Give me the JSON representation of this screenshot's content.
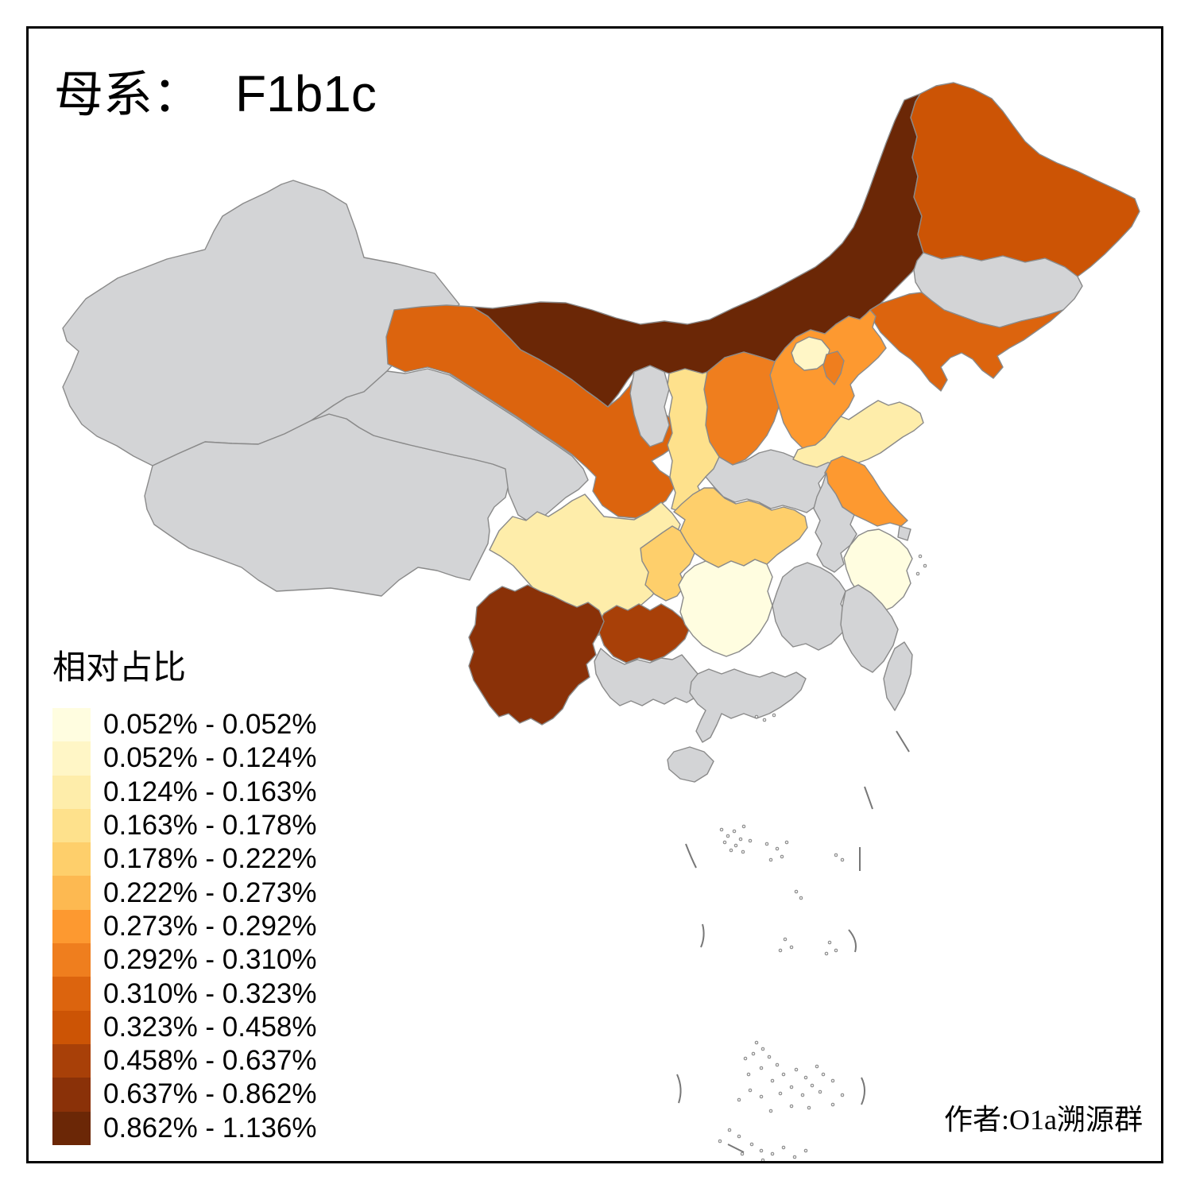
{
  "title": {
    "prefix": "母系：",
    "haplogroup": "F1b1c"
  },
  "legend": {
    "title": "相对占比",
    "bands": [
      {
        "label": "0.052% - 0.052%",
        "color": "#FFFDE0"
      },
      {
        "label": "0.052% - 0.124%",
        "color": "#FFF6C6"
      },
      {
        "label": "0.124% - 0.163%",
        "color": "#FEEDAA"
      },
      {
        "label": "0.163% - 0.178%",
        "color": "#FEE18C"
      },
      {
        "label": "0.178% - 0.222%",
        "color": "#FECF6B"
      },
      {
        "label": "0.222% - 0.273%",
        "color": "#FDB951"
      },
      {
        "label": "0.273% - 0.292%",
        "color": "#FD9930"
      },
      {
        "label": "0.292% - 0.310%",
        "color": "#EF7E1E"
      },
      {
        "label": "0.310% - 0.323%",
        "color": "#DC640E"
      },
      {
        "label": "0.323% - 0.458%",
        "color": "#CC5405"
      },
      {
        "label": "0.458% - 0.637%",
        "color": "#A84008"
      },
      {
        "label": "0.637% - 0.862%",
        "color": "#8A3108"
      },
      {
        "label": "0.862% - 1.136%",
        "color": "#6B2706"
      }
    ]
  },
  "attribution": "作者:O1a溯源群",
  "map": {
    "no_data_color": "#D3D4D6",
    "border_color": "#8A8A8A",
    "island_mark_color": "#777777",
    "frame_color": "#000000",
    "provinces": [
      {
        "id": "xinjiang",
        "name_zh": "新疆",
        "band": null
      },
      {
        "id": "tibet",
        "name_zh": "西藏",
        "band": null
      },
      {
        "id": "qinghai",
        "name_zh": "青海",
        "band": null
      },
      {
        "id": "gansu",
        "name_zh": "甘肃",
        "band": 9
      },
      {
        "id": "inner_mongolia",
        "name_zh": "内蒙古",
        "band": 13
      },
      {
        "id": "heilongjiang",
        "name_zh": "黑龙江",
        "band": 10
      },
      {
        "id": "jilin",
        "name_zh": "吉林",
        "band": null
      },
      {
        "id": "liaoning",
        "name_zh": "辽宁",
        "band": 9
      },
      {
        "id": "hebei",
        "name_zh": "河北",
        "band": 7
      },
      {
        "id": "shanxi",
        "name_zh": "山西",
        "band": 8
      },
      {
        "id": "shaanxi",
        "name_zh": "陕西",
        "band": 4
      },
      {
        "id": "ningxia",
        "name_zh": "宁夏",
        "band": null
      },
      {
        "id": "henan",
        "name_zh": "河南",
        "band": null
      },
      {
        "id": "shandong",
        "name_zh": "山东",
        "band": 3
      },
      {
        "id": "jiangsu",
        "name_zh": "江苏",
        "band": 7
      },
      {
        "id": "anhui",
        "name_zh": "安徽",
        "band": null
      },
      {
        "id": "hubei",
        "name_zh": "湖北",
        "band": 5
      },
      {
        "id": "sichuan",
        "name_zh": "四川",
        "band": 3
      },
      {
        "id": "chongqing",
        "name_zh": "重庆",
        "band": 5
      },
      {
        "id": "guizhou",
        "name_zh": "贵州",
        "band": 11
      },
      {
        "id": "yunnan",
        "name_zh": "云南",
        "band": 12
      },
      {
        "id": "hunan",
        "name_zh": "湖南",
        "band": 1
      },
      {
        "id": "jiangxi",
        "name_zh": "江西",
        "band": null
      },
      {
        "id": "zhejiang",
        "name_zh": "浙江",
        "band": 1
      },
      {
        "id": "shanghai",
        "name_zh": "上海",
        "band": null
      },
      {
        "id": "fujian",
        "name_zh": "福建",
        "band": null
      },
      {
        "id": "guangxi",
        "name_zh": "广西",
        "band": null
      },
      {
        "id": "guangdong",
        "name_zh": "广东",
        "band": null
      },
      {
        "id": "hainan",
        "name_zh": "海南",
        "band": null
      },
      {
        "id": "taiwan",
        "name_zh": "台湾",
        "band": null
      },
      {
        "id": "beijing",
        "name_zh": "北京",
        "band": 2
      },
      {
        "id": "tianjin",
        "name_zh": "天津",
        "band": 8
      }
    ]
  },
  "chart_data": {
    "type": "choropleth",
    "title": "母系： F1b1c",
    "legend_title": "相对占比",
    "classes": [
      "0.052% - 0.052%",
      "0.052% - 0.124%",
      "0.124% - 0.163%",
      "0.163% - 0.178%",
      "0.178% - 0.222%",
      "0.222% - 0.273%",
      "0.273% - 0.292%",
      "0.292% - 0.310%",
      "0.310% - 0.323%",
      "0.323% - 0.458%",
      "0.458% - 0.637%",
      "0.637% - 0.862%",
      "0.862% - 1.136%"
    ],
    "assignments": {
      "内蒙古": "0.862% - 1.136%",
      "云南": "0.637% - 0.862%",
      "贵州": "0.458% - 0.637%",
      "黑龙江": "0.323% - 0.458%",
      "辽宁": "0.310% - 0.323%",
      "甘肃": "0.310% - 0.323%",
      "山西": "0.292% - 0.310%",
      "天津": "0.292% - 0.310%",
      "河北": "0.273% - 0.292%",
      "江苏": "0.273% - 0.292%",
      "湖北": "0.178% - 0.222%",
      "重庆": "0.178% - 0.222%",
      "陕西": "0.163% - 0.178%",
      "四川": "0.124% - 0.163%",
      "山东": "0.124% - 0.163%",
      "北京": "0.052% - 0.124%",
      "湖南": "0.052% - 0.052%",
      "浙江": "0.052% - 0.052%",
      "no_data": [
        "新疆",
        "西藏",
        "青海",
        "宁夏",
        "河南",
        "安徽",
        "上海",
        "江西",
        "福建",
        "广东",
        "广西",
        "海南",
        "台湾",
        "吉林"
      ]
    }
  }
}
